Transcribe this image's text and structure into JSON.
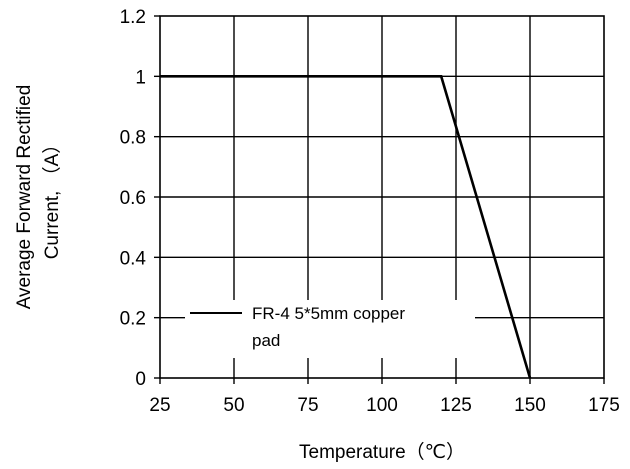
{
  "chart_data": {
    "type": "line",
    "title": "",
    "xlabel": "Temperature（℃）",
    "ylabel_lines": [
      "Average  Forward  Rectified",
      "Current, （A）"
    ],
    "xlim": [
      25,
      175
    ],
    "ylim": [
      0,
      1.2
    ],
    "x_ticks": [
      25,
      50,
      75,
      100,
      125,
      150,
      175
    ],
    "y_ticks": [
      0,
      0.2,
      0.4,
      0.6,
      0.8,
      1,
      1.2
    ],
    "x_tick_labels": [
      "25",
      "50",
      "75",
      "100",
      "125",
      "150",
      "175"
    ],
    "y_tick_labels": [
      "0",
      "0.2",
      "0.4",
      "0.6",
      "0.8",
      "1",
      "1.2"
    ],
    "grid": true,
    "legend_position": "bottom-left",
    "legend_lines": [
      "FR-4  5*5mm copper",
      "pad"
    ],
    "series": [
      {
        "name": "FR-4  5*5mm copper pad",
        "color": "#000000",
        "x": [
          25,
          120,
          150
        ],
        "y": [
          1,
          1,
          0
        ]
      }
    ]
  }
}
